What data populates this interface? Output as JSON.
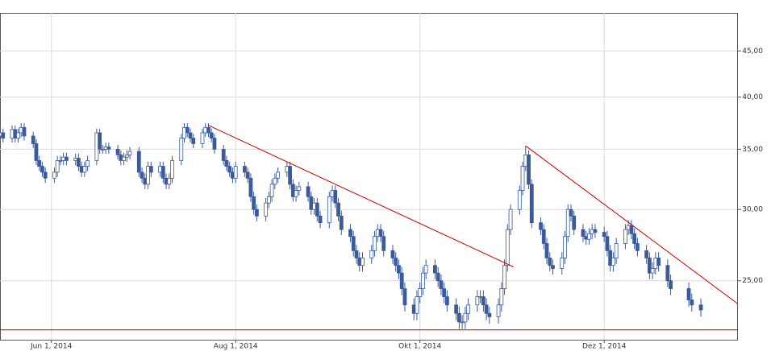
{
  "chart_data": {
    "type": "candlestick",
    "log_scale": true,
    "grid": true,
    "up_color": "#ffffff",
    "down_color": "#3b5a9a",
    "edge_color": "#3b5a9a",
    "xlim": [
      "2014-05-15",
      "2015-01-14"
    ],
    "xticks": [
      {
        "value": "2014-06-01",
        "label": "Jun 1, 2014"
      },
      {
        "value": "2014-08-01",
        "label": "Aug 1, 2014"
      },
      {
        "value": "2014-10-01",
        "label": "Okt 1, 2014"
      },
      {
        "value": "2014-12-01",
        "label": "Dez 1, 2014"
      }
    ],
    "ylim": [
      21.5,
      49.6
    ],
    "yticks": [
      {
        "value": 25,
        "label": "25,00"
      },
      {
        "value": 30,
        "label": "30,00"
      },
      {
        "value": 35,
        "label": "35,00"
      },
      {
        "value": 40,
        "label": "40,00"
      },
      {
        "value": 45,
        "label": "45,00"
      }
    ],
    "x": [
      "2014-05-15",
      "2014-05-16",
      "2014-05-19",
      "2014-05-20",
      "2014-05-21",
      "2014-05-22",
      "2014-05-23",
      "2014-05-26",
      "2014-05-27",
      "2014-05-28",
      "2014-05-29",
      "2014-05-30",
      "2014-06-02",
      "2014-06-03",
      "2014-06-04",
      "2014-06-05",
      "2014-06-06",
      "2014-06-09",
      "2014-06-10",
      "2014-06-11",
      "2014-06-12",
      "2014-06-13",
      "2014-06-16",
      "2014-06-17",
      "2014-06-18",
      "2014-06-19",
      "2014-06-20",
      "2014-06-23",
      "2014-06-24",
      "2014-06-25",
      "2014-06-26",
      "2014-06-27",
      "2014-06-30",
      "2014-07-01",
      "2014-07-02",
      "2014-07-03",
      "2014-07-04",
      "2014-07-07",
      "2014-07-08",
      "2014-07-09",
      "2014-07-10",
      "2014-07-11",
      "2014-07-14",
      "2014-07-15",
      "2014-07-16",
      "2014-07-17",
      "2014-07-18",
      "2014-07-21",
      "2014-07-22",
      "2014-07-23",
      "2014-07-24",
      "2014-07-25",
      "2014-07-28",
      "2014-07-29",
      "2014-07-30",
      "2014-07-31",
      "2014-08-01",
      "2014-08-04",
      "2014-08-05",
      "2014-08-06",
      "2014-08-07",
      "2014-08-08",
      "2014-08-11",
      "2014-08-12",
      "2014-08-13",
      "2014-08-14",
      "2014-08-15",
      "2014-08-18",
      "2014-08-19",
      "2014-08-20",
      "2014-08-21",
      "2014-08-22",
      "2014-08-25",
      "2014-08-26",
      "2014-08-27",
      "2014-08-28",
      "2014-08-29",
      "2014-09-01",
      "2014-09-02",
      "2014-09-03",
      "2014-09-04",
      "2014-09-05",
      "2014-09-08",
      "2014-09-09",
      "2014-09-10",
      "2014-09-11",
      "2014-09-12",
      "2014-09-15",
      "2014-09-16",
      "2014-09-17",
      "2014-09-18",
      "2014-09-19",
      "2014-09-22",
      "2014-09-23",
      "2014-09-24",
      "2014-09-25",
      "2014-09-26",
      "2014-09-29",
      "2014-09-30",
      "2014-10-01",
      "2014-10-02",
      "2014-10-03",
      "2014-10-06",
      "2014-10-07",
      "2014-10-08",
      "2014-10-09",
      "2014-10-10",
      "2014-10-13",
      "2014-10-14",
      "2014-10-15",
      "2014-10-16",
      "2014-10-17",
      "2014-10-20",
      "2014-10-21",
      "2014-10-22",
      "2014-10-23",
      "2014-10-24",
      "2014-10-27",
      "2014-10-28",
      "2014-10-29",
      "2014-10-30",
      "2014-10-31",
      "2014-11-03",
      "2014-11-04",
      "2014-11-05",
      "2014-11-06",
      "2014-11-07",
      "2014-11-10",
      "2014-11-11",
      "2014-11-12",
      "2014-11-13",
      "2014-11-14",
      "2014-11-17",
      "2014-11-18",
      "2014-11-19",
      "2014-11-20",
      "2014-11-21",
      "2014-11-24",
      "2014-11-25",
      "2014-11-26",
      "2014-11-27",
      "2014-11-28",
      "2014-12-01",
      "2014-12-02",
      "2014-12-03",
      "2014-12-04",
      "2014-12-05",
      "2014-12-08",
      "2014-12-09",
      "2014-12-10",
      "2014-12-11",
      "2014-12-12",
      "2014-12-15",
      "2014-12-16",
      "2014-12-17",
      "2014-12-18",
      "2014-12-19",
      "2014-12-22",
      "2014-12-23",
      "2014-12-29",
      "2014-12-30",
      "2015-01-02"
    ],
    "open": [
      36.2,
      36.5,
      36,
      36.8,
      36,
      36.5,
      37,
      36.2,
      35.5,
      34,
      33.5,
      33,
      32.5,
      33,
      34,
      34,
      34.3,
      34,
      34.2,
      33.5,
      33,
      33.5,
      34,
      36.5,
      35,
      35,
      35.2,
      35,
      34.5,
      34,
      34.3,
      34.5,
      34.8,
      33,
      32.5,
      32,
      33.5,
      33,
      33.5,
      32.5,
      32,
      32.5,
      34,
      36,
      37,
      36.5,
      36,
      35.5,
      36.5,
      37,
      36.5,
      36,
      35,
      34,
      33.5,
      33,
      32.5,
      33.5,
      33,
      32.5,
      31,
      30,
      29.5,
      30.5,
      31,
      32,
      32.5,
      33,
      33.5,
      32,
      31,
      31.5,
      31.8,
      31,
      30,
      30.5,
      29.5,
      29,
      31,
      31.5,
      30.5,
      29.5,
      28.5,
      28,
      27,
      26.5,
      26,
      26.5,
      27,
      28,
      28.5,
      28,
      27,
      26.5,
      26,
      25.5,
      24.5,
      23.5,
      23,
      24,
      24.5,
      25.5,
      26,
      25.5,
      25,
      24.5,
      24,
      23.5,
      23,
      22.5,
      22.5,
      23,
      23.5,
      24,
      24,
      23.5,
      23,
      22.8,
      23.5,
      24.5,
      26,
      28.5,
      30,
      31.5,
      33.5,
      34.5,
      32,
      29,
      28.5,
      27.5,
      26.5,
      26,
      25.8,
      26.5,
      28,
      30,
      29.5,
      28.5,
      28,
      27.8,
      28.2,
      28.5,
      28.3,
      28,
      27,
      26,
      26.5,
      27.5,
      28.5,
      28.8,
      28.2,
      27.5,
      27,
      26.5,
      25.5,
      25.8,
      26.5,
      26,
      25,
      24.5,
      23.8,
      23.5
    ],
    "high": [
      36.9,
      36.9,
      37.2,
      37.2,
      36.9,
      37.4,
      37.4,
      36.6,
      35.9,
      34.4,
      33.9,
      33.4,
      33.4,
      34.4,
      34.4,
      34.7,
      34.7,
      34.6,
      34.6,
      33.9,
      33.9,
      34.4,
      36.9,
      36.9,
      35.4,
      35.6,
      35.6,
      35.4,
      34.9,
      34.7,
      34.9,
      35.2,
      35.2,
      33.4,
      32.9,
      33.9,
      33.9,
      33.9,
      33.9,
      32.9,
      32.9,
      34.4,
      36.4,
      37.4,
      37.4,
      36.9,
      36.4,
      36.9,
      37.4,
      37.4,
      36.9,
      36.4,
      35.4,
      34.4,
      33.9,
      33.4,
      33.9,
      33.9,
      33.4,
      32.9,
      31.4,
      30.4,
      30.9,
      31.4,
      32.4,
      32.9,
      33.4,
      33.9,
      33.9,
      32.4,
      31.9,
      32.2,
      32.2,
      31.4,
      30.9,
      30.9,
      29.9,
      31.4,
      31.9,
      31.9,
      30.9,
      29.9,
      28.9,
      28.4,
      27.4,
      26.9,
      26.9,
      27.4,
      28.4,
      28.9,
      28.9,
      28.4,
      27.4,
      26.9,
      26.4,
      25.9,
      24.9,
      23.9,
      24.4,
      24.9,
      25.9,
      26.4,
      26.4,
      25.9,
      25.4,
      24.9,
      24.4,
      23.9,
      23.4,
      22.9,
      23.4,
      23.9,
      24.4,
      24.4,
      24.4,
      23.9,
      23.4,
      23.9,
      24.9,
      26.4,
      28.9,
      30.4,
      31.9,
      33.9,
      35.3,
      34.9,
      32.4,
      29.4,
      28.9,
      27.9,
      26.9,
      26.4,
      26.9,
      28.4,
      30.4,
      30.4,
      29.9,
      28.9,
      28.4,
      28.6,
      28.9,
      28.9,
      28.7,
      28.4,
      27.4,
      26.9,
      27.9,
      28.9,
      29.2,
      29.2,
      28.6,
      27.9,
      27.4,
      26.9,
      26.2,
      26.9,
      26.9,
      26.4,
      25.4,
      24.9,
      24.2,
      23.9
    ],
    "low": [
      35.8,
      35.6,
      35.6,
      35.6,
      35.6,
      36.1,
      35.8,
      35.1,
      33.6,
      33.1,
      32.6,
      32.1,
      32.1,
      32.6,
      33.6,
      33.6,
      33.6,
      33.6,
      33.1,
      32.6,
      32.6,
      33.1,
      33.6,
      34.6,
      34.6,
      34.6,
      34.6,
      34.1,
      33.6,
      33.6,
      33.9,
      34.1,
      32.6,
      32.1,
      31.6,
      31.6,
      32.6,
      32.6,
      32.1,
      31.6,
      31.6,
      32.1,
      33.6,
      35.6,
      36.1,
      35.6,
      35.1,
      35.1,
      36.1,
      36.1,
      35.6,
      34.6,
      33.6,
      33.1,
      32.6,
      32.1,
      32.1,
      32.6,
      32.1,
      30.6,
      29.6,
      29.1,
      29.1,
      30.1,
      30.6,
      31.6,
      32.1,
      32.6,
      31.6,
      30.6,
      30.6,
      31.1,
      30.6,
      29.6,
      29.6,
      29.1,
      28.6,
      28.6,
      30.6,
      30.1,
      29.1,
      28.1,
      27.6,
      26.6,
      26.1,
      25.6,
      25.6,
      26.1,
      26.6,
      27.6,
      27.6,
      26.6,
      26.1,
      25.6,
      25.1,
      24.1,
      23.1,
      22.6,
      22.6,
      23.6,
      24.1,
      25.1,
      25.1,
      24.6,
      24.1,
      23.6,
      23.1,
      22.6,
      22.1,
      22.1,
      22.1,
      22.6,
      23.1,
      23.6,
      23.1,
      22.6,
      22.4,
      22.4,
      23.1,
      24.1,
      25.6,
      28.1,
      29.6,
      31.1,
      33.1,
      31.6,
      28.6,
      28.1,
      27.1,
      26.1,
      25.6,
      25.4,
      25.4,
      26.1,
      27.6,
      29.1,
      28.1,
      27.6,
      27.4,
      27.4,
      27.8,
      27.9,
      27.6,
      26.6,
      25.6,
      25.6,
      26.1,
      27.1,
      28.1,
      27.8,
      27.1,
      26.6,
      26.1,
      25.1,
      25.1,
      25.4,
      25.6,
      24.6,
      24.1,
      23.4,
      23.1,
      22.8
    ],
    "close": [
      36.5,
      36,
      36.8,
      36,
      36.5,
      37,
      36.2,
      35.5,
      34,
      33.5,
      33,
      32.5,
      33,
      34,
      34,
      34.3,
      34,
      34.2,
      33.5,
      33,
      33.5,
      34,
      36.5,
      35,
      35,
      35.2,
      35,
      34.5,
      34,
      34.3,
      34.5,
      34.8,
      33,
      32.5,
      32,
      33.5,
      33,
      33.5,
      32.5,
      32,
      32.5,
      34,
      36,
      37,
      36.5,
      36,
      35.5,
      36.5,
      37,
      36.5,
      36,
      35,
      34,
      33.5,
      33,
      32.5,
      33.5,
      33,
      32.5,
      31,
      30,
      29.5,
      30.5,
      31,
      32,
      32.5,
      33,
      33.5,
      32,
      31,
      31.5,
      31.8,
      31,
      30,
      30.5,
      29.5,
      29,
      31,
      31.5,
      30.5,
      29.5,
      28.5,
      28,
      27,
      26.5,
      26,
      26.5,
      27,
      28,
      28.5,
      28,
      27,
      26.5,
      26,
      25.5,
      24.5,
      23.5,
      23,
      24,
      24.5,
      25.5,
      26,
      25.5,
      25,
      24.5,
      24,
      23.5,
      23,
      22.5,
      22.5,
      23,
      23.5,
      24,
      24,
      23.5,
      23,
      22.8,
      23.5,
      24.5,
      26,
      28.5,
      30,
      31.5,
      33.5,
      34.5,
      32,
      29,
      28.5,
      27.5,
      26.5,
      26,
      25.8,
      26.5,
      28,
      30,
      29.5,
      28.5,
      28,
      27.8,
      28.2,
      28.5,
      28.3,
      28,
      27,
      26,
      26.5,
      27.5,
      28.5,
      28.8,
      28.2,
      27.5,
      27,
      26.5,
      25.5,
      25.8,
      26.5,
      26,
      25,
      24.5,
      23.8,
      23.5,
      23.2
    ],
    "trendlines": [
      {
        "x": [
          "2014-07-23",
          "2014-11-01"
        ],
        "y": [
          37.2,
          25.9
        ],
        "color": "#cc0000"
      },
      {
        "x": [
          "2014-11-05",
          "2015-01-14"
        ],
        "y": [
          35.3,
          23.6
        ],
        "color": "#cc0000"
      },
      {
        "x": [
          "2014-05-15",
          "2015-01-14"
        ],
        "y": [
          22.05,
          22.05
        ],
        "color": "#cc0000"
      }
    ]
  }
}
